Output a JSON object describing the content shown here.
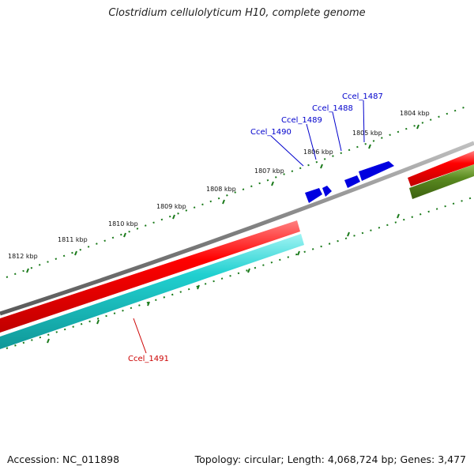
{
  "title": "Clostridium cellulolyticum H10, complete genome",
  "footer": {
    "accession": "Accession: NC_011898",
    "summary": "Topology: circular; Length: 4,068,724 bp; Genes: 3,477"
  },
  "colors": {
    "backbone": "#808080",
    "forward_cds": "#e00000",
    "reverse_cds": "#20c8c8",
    "small_genes": "#0000e0",
    "olive_feature": "#5a8a20",
    "ticks": "#1a7a1a",
    "label_blue": "#0000cc",
    "label_red": "#cc0000"
  },
  "scale": {
    "unit": "kbp",
    "labels": [
      {
        "kbp": 1804,
        "text": "1804 kbp"
      },
      {
        "kbp": 1805,
        "text": "1805 kbp"
      },
      {
        "kbp": 1806,
        "text": "1806 kbp"
      },
      {
        "kbp": 1807,
        "text": "1807 kbp"
      },
      {
        "kbp": 1808,
        "text": "1808 kbp"
      },
      {
        "kbp": 1809,
        "text": "1809 kbp"
      },
      {
        "kbp": 1810,
        "text": "1810 kbp"
      },
      {
        "kbp": 1811,
        "text": "1811 kbp"
      },
      {
        "kbp": 1812,
        "text": "1812 kbp"
      }
    ]
  },
  "genes": [
    {
      "id": "Ccel_1487",
      "strand": "+",
      "color": "#0000cc"
    },
    {
      "id": "Ccel_1488",
      "strand": "+",
      "color": "#0000cc"
    },
    {
      "id": "Ccel_1489",
      "strand": "+",
      "color": "#0000cc"
    },
    {
      "id": "Ccel_1490",
      "strand": "+",
      "color": "#0000cc"
    },
    {
      "id": "Ccel_1491",
      "strand": "-",
      "color": "#cc0000"
    }
  ]
}
